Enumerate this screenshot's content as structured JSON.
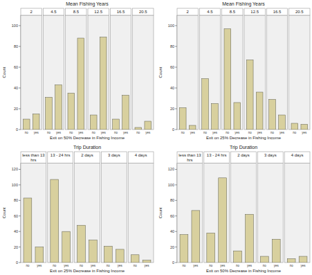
{
  "chart_data": [
    {
      "type": "bar",
      "title": "Mean Fishing Years",
      "x_label": "Exit on 50% Decrease in Fishing Income",
      "y_label": "Count",
      "categories": [
        "2",
        "4.5",
        "8.5",
        "12.5",
        "16.5",
        "20.5"
      ],
      "series": [
        {
          "name": "no",
          "color": "#d8d09e",
          "values": [
            10,
            31,
            35,
            14,
            10,
            2
          ]
        },
        {
          "name": "yes",
          "color": "#d8d09e",
          "values": [
            15,
            43,
            88,
            89,
            33,
            8
          ]
        }
      ],
      "ylim": [
        0,
        110
      ],
      "yticks": [
        0,
        20,
        40,
        60,
        80,
        100
      ],
      "grid": false
    },
    {
      "type": "bar",
      "title": "Mean Fishing Years",
      "x_label": "Exit on 25% Decrease in Fishing Income",
      "y_label": "Count",
      "categories": [
        "2",
        "4.5",
        "8.5",
        "12.5",
        "16.5",
        "20.5"
      ],
      "series": [
        {
          "name": "no",
          "color": "#d8d09e",
          "values": [
            21,
            49,
            97,
            67,
            29,
            6
          ]
        },
        {
          "name": "yes",
          "color": "#d8d09e",
          "values": [
            4,
            25,
            26,
            36,
            14,
            5
          ]
        }
      ],
      "ylim": [
        0,
        110
      ],
      "yticks": [
        0,
        20,
        40,
        60,
        80,
        100
      ],
      "grid": false
    },
    {
      "type": "bar",
      "title": "Trip Duration",
      "x_label": "Exit on 25% Decrease in Fishing Income",
      "y_label": "Count",
      "categories": [
        "less than 13 hrs",
        "13 - 24 hrs",
        "2 days",
        "3 days",
        "4 days"
      ],
      "series": [
        {
          "name": "no",
          "color": "#d8d09e",
          "values": [
            83,
            107,
            48,
            21,
            10
          ]
        },
        {
          "name": "yes",
          "color": "#d8d09e",
          "values": [
            20,
            40,
            29,
            17,
            3
          ]
        }
      ],
      "ylim": [
        0,
        128
      ],
      "yticks": [
        0,
        20,
        40,
        60,
        80,
        100,
        120
      ],
      "grid": false
    },
    {
      "type": "bar",
      "title": "Trip Duration",
      "x_label": "Exit on 50% Decrease in Fishing Income",
      "y_label": "Count",
      "categories": [
        "less than 13 hrs",
        "13 - 24 hrs",
        "2 days",
        "3 days",
        "4 days"
      ],
      "series": [
        {
          "name": "no",
          "color": "#d8d09e",
          "values": [
            36,
            38,
            15,
            8,
            5
          ]
        },
        {
          "name": "yes",
          "color": "#d8d09e",
          "values": [
            67,
            109,
            62,
            30,
            8
          ]
        }
      ],
      "ylim": [
        0,
        128
      ],
      "yticks": [
        0,
        20,
        40,
        60,
        80,
        100,
        120
      ],
      "grid": false
    }
  ]
}
